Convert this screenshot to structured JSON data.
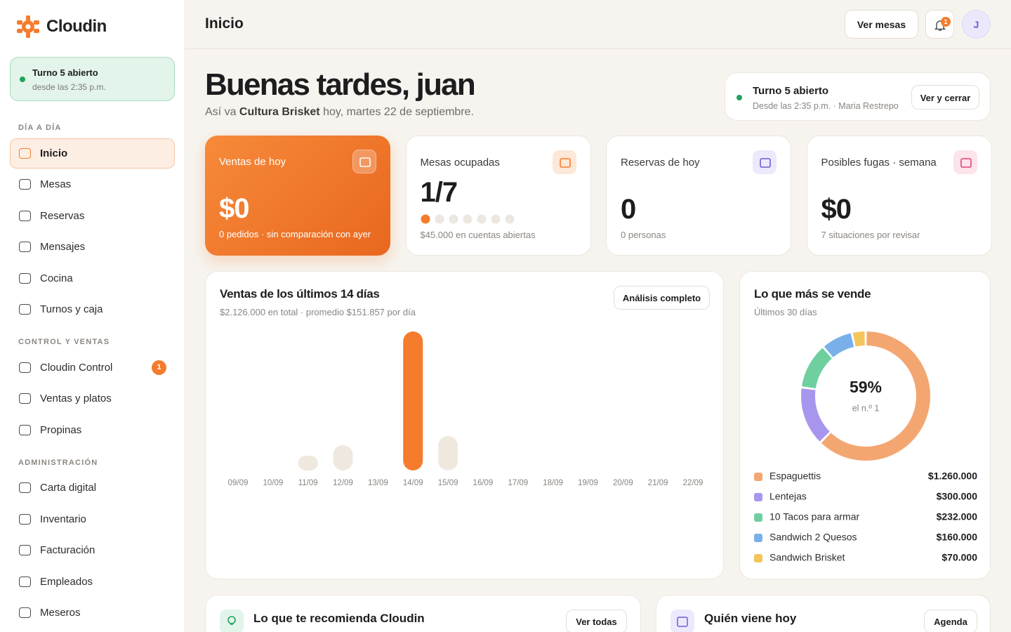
{
  "sidebar": {
    "logo": "Cloudin",
    "shift": {
      "title": "Turno 5 abierto",
      "since": "desde las 2:35 p.m."
    },
    "sections": [
      {
        "title": "DÍA A DÍA",
        "items": [
          {
            "label": "Inicio",
            "active": true
          },
          {
            "label": "Mesas"
          },
          {
            "label": "Reservas"
          },
          {
            "label": "Mensajes"
          },
          {
            "label": "Cocina"
          },
          {
            "label": "Turnos y caja"
          }
        ]
      },
      {
        "title": "CONTROL Y VENTAS",
        "items": [
          {
            "label": "Cloudin Control",
            "badge": "1"
          },
          {
            "label": "Ventas y platos"
          },
          {
            "label": "Propinas"
          }
        ]
      },
      {
        "title": "ADMINISTRACIÓN",
        "items": [
          {
            "label": "Carta digital"
          },
          {
            "label": "Inventario"
          },
          {
            "label": "Facturación"
          },
          {
            "label": "Empleados"
          },
          {
            "label": "Meseros"
          }
        ]
      }
    ]
  },
  "header": {
    "title": "Inicio",
    "button": "Ver mesas",
    "notifications": "1",
    "avatar": "J"
  },
  "greeting": {
    "title": "Buenas tardes, juan",
    "lead": "Así va",
    "restaurant": "Cultura Brisket",
    "date": "hoy, martes 22 de septiembre."
  },
  "shift_card": {
    "title": "Turno 5 abierto",
    "detail": "Desde las 2:35 p.m. · Maria Restrepo",
    "button": "Ver y cerrar"
  },
  "stats": [
    {
      "title": "Ventas de hoy",
      "value": "$0",
      "note": "0 pedidos · sin comparación con ayer"
    },
    {
      "title": "Mesas ocupadas",
      "value": "1/7",
      "note": "$45.000 en cuentas abiertas",
      "occupied": 1,
      "tables": 7
    },
    {
      "title": "Reservas de hoy",
      "value": "0",
      "note": "0 personas"
    },
    {
      "title": "Posibles fugas · semana",
      "value": "$0",
      "note": "7 situaciones por revisar"
    }
  ],
  "sales_chart": {
    "type": "bar",
    "title": "Ventas de los últimos 14 días",
    "subtitle": "$2.126.000 en total · promedio $151.857 por día",
    "button": "Análisis completo",
    "categories": [
      "09/09",
      "10/09",
      "11/09",
      "12/09",
      "13/09",
      "14/09",
      "15/09",
      "16/09",
      "17/09",
      "18/09",
      "19/09",
      "20/09",
      "21/09",
      "22/09"
    ],
    "values": [
      0,
      0,
      147000,
      252000,
      0,
      1385000,
      342000,
      0,
      0,
      0,
      0,
      0,
      0,
      0
    ],
    "color": "#efe8df",
    "highlight_color": "#f47c2c"
  },
  "top_chart": {
    "type": "pie",
    "title": "Lo que más se vende",
    "subtitle": "Últimos 30 días",
    "center_value": "59%",
    "center_label": "el n.º 1",
    "categories": [
      "Espaguettis",
      "Lentejas",
      "10 Tacos para armar",
      "Sandwich 2 Quesos",
      "Sandwich Brisket"
    ],
    "values": [
      1260000,
      300000,
      232000,
      160000,
      70000
    ],
    "value_labels": [
      "$1.260.000",
      "$300.000",
      "$232.000",
      "$160.000",
      "$70.000"
    ],
    "colors": [
      "#f4a671",
      "#a896ee",
      "#6fcf9f",
      "#7ab0ea",
      "#f3c55a"
    ]
  },
  "bottom": [
    {
      "title": "Lo que te recomienda Cloudin",
      "button": "Ver todas"
    },
    {
      "title": "Quién viene hoy",
      "button": "Agenda"
    }
  ]
}
